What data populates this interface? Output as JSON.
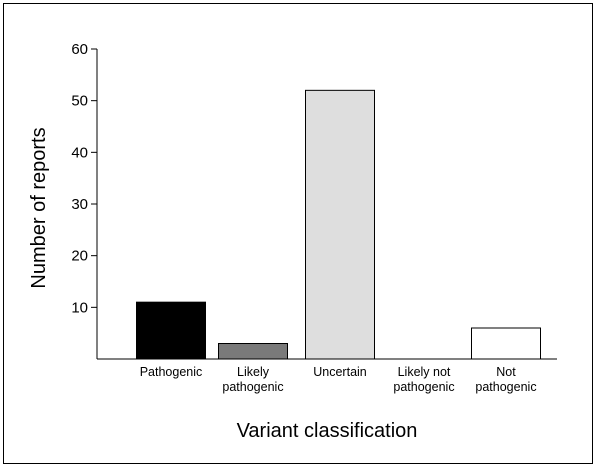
{
  "chart_data": {
    "type": "bar",
    "title": "",
    "xlabel": "Variant classification",
    "ylabel": "Number of reports",
    "categories": [
      [
        "Pathogenic"
      ],
      [
        "Likely",
        "pathogenic"
      ],
      [
        "Uncertain"
      ],
      [
        "Likely not",
        "pathogenic"
      ],
      [
        "Not",
        "pathogenic"
      ]
    ],
    "values": [
      11,
      3,
      52,
      0,
      6
    ],
    "bar_colors": [
      "#000000",
      "#7a7a7a",
      "#dedede",
      "#ffffff",
      "#ffffff"
    ],
    "ylim": [
      0,
      60
    ],
    "yticks": [
      10,
      20,
      30,
      40,
      50,
      60
    ],
    "grid": false,
    "legend": "none"
  }
}
